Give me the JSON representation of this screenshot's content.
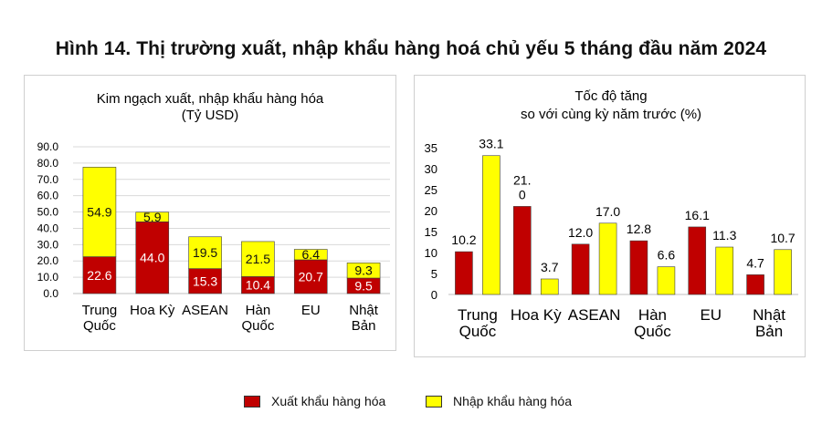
{
  "main_title": "Hình 14. Thị trường xuất, nhập khẩu hàng hoá chủ yếu 5 tháng đầu năm 2024",
  "colors": {
    "export": "#c00000",
    "import": "#ffff00",
    "grid": "#d9d9d9",
    "outline": "#404040"
  },
  "legend": {
    "export_label": "Xuất khẩu hàng hóa",
    "import_label": "Nhập khẩu hàng hóa"
  },
  "chart_data": [
    {
      "type": "bar",
      "stacked": true,
      "title_line1": "Kim ngạch xuất, nhập khẩu hàng hóa",
      "title_line2": "(Tỷ USD)",
      "categories": [
        [
          "Trung",
          "Quốc"
        ],
        [
          "Hoa Kỳ"
        ],
        [
          "ASEAN"
        ],
        [
          "Hàn",
          "Quốc"
        ],
        [
          "EU"
        ],
        [
          "Nhật",
          "Bản"
        ]
      ],
      "series": [
        {
          "name": "Xuất khẩu hàng hóa",
          "values": [
            22.6,
            44.0,
            15.3,
            10.4,
            20.7,
            9.5
          ]
        },
        {
          "name": "Nhập khẩu hàng hóa",
          "values": [
            54.9,
            5.9,
            19.5,
            21.5,
            6.4,
            9.3
          ]
        }
      ],
      "data_labels": {
        "export": [
          "22.6",
          "44.0",
          "15.3",
          "10.4",
          "20.7",
          "9.5"
        ],
        "import": [
          "54.9",
          "5.9",
          "19.5",
          "21.5",
          "6.4",
          "9.3"
        ]
      },
      "ylim": [
        0,
        90
      ],
      "yticks": [
        "0.0",
        "10.0",
        "20.0",
        "30.0",
        "40.0",
        "50.0",
        "60.0",
        "70.0",
        "80.0",
        "90.0"
      ],
      "grid": true
    },
    {
      "type": "bar",
      "stacked": false,
      "title_line1": "Tốc độ tăng",
      "title_line2": "so với cùng kỳ năm trước (%)",
      "categories": [
        [
          "Trung",
          "Quốc"
        ],
        [
          "Hoa Kỳ"
        ],
        [
          "ASEAN"
        ],
        [
          "Hàn",
          "Quốc"
        ],
        [
          "EU"
        ],
        [
          "Nhật",
          "Bản"
        ]
      ],
      "series": [
        {
          "name": "Xuất khẩu hàng hóa",
          "values": [
            10.2,
            21.0,
            12.0,
            12.8,
            16.1,
            4.7
          ]
        },
        {
          "name": "Nhập khẩu hàng hóa",
          "values": [
            33.1,
            3.7,
            17.0,
            6.6,
            11.3,
            10.7
          ]
        }
      ],
      "data_labels": {
        "export": [
          [
            "10.2"
          ],
          [
            "21.",
            "0"
          ],
          [
            "12.0"
          ],
          [
            "12.8"
          ],
          [
            "16.1"
          ],
          [
            "4.7"
          ]
        ],
        "import": [
          [
            "33.1"
          ],
          [
            "3.7"
          ],
          [
            "17.0"
          ],
          [
            "6.6"
          ],
          [
            "11.3"
          ],
          [
            "10.7"
          ]
        ]
      },
      "ylim": [
        0,
        35
      ],
      "yticks": [
        "0",
        "5",
        "10",
        "15",
        "20",
        "25",
        "30",
        "35"
      ],
      "grid": false
    }
  ]
}
